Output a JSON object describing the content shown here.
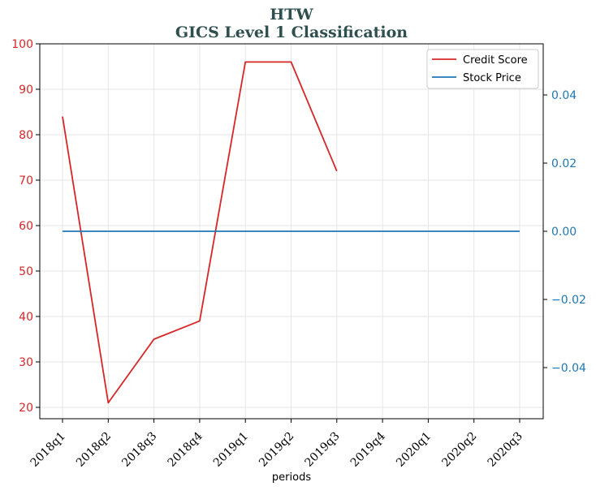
{
  "chart_data": {
    "type": "line",
    "title": [
      "HTW",
      "GICS Level 1 Classification"
    ],
    "xlabel": "periods",
    "categories": [
      "2018q1",
      "2018q2",
      "2018q3",
      "2018q4",
      "2019q1",
      "2019q2",
      "2019q3",
      "2019q4",
      "2020q1",
      "2020q2",
      "2020q3"
    ],
    "left_axis": {
      "ylim": [
        17.5,
        100
      ],
      "ticks": [
        20,
        30,
        40,
        50,
        60,
        70,
        80,
        90,
        100
      ],
      "tick_labels": [
        "20",
        "30",
        "40",
        "50",
        "60",
        "70",
        "80",
        "90",
        "100"
      ],
      "color": "#d62728"
    },
    "right_axis": {
      "ylim": [
        -0.055,
        0.055
      ],
      "ticks": [
        -0.04,
        -0.02,
        0.0,
        0.02,
        0.04
      ],
      "tick_labels": [
        "−0.04",
        "−0.02",
        "0.00",
        "0.02",
        "0.04"
      ],
      "color": "#1f77b4"
    },
    "series": [
      {
        "name": "Credit Score",
        "axis": "left",
        "color": "#d62728",
        "values": [
          84,
          21,
          35,
          39,
          96,
          96,
          72,
          null,
          null,
          null,
          null
        ]
      },
      {
        "name": "Stock Price",
        "axis": "right",
        "color": "#1f77b4",
        "values": [
          0,
          0,
          0,
          0,
          0,
          0,
          0,
          0,
          0,
          0,
          0
        ]
      }
    ],
    "grid": true,
    "legend_position": "top-right",
    "title_color": "#2f4f4f"
  }
}
